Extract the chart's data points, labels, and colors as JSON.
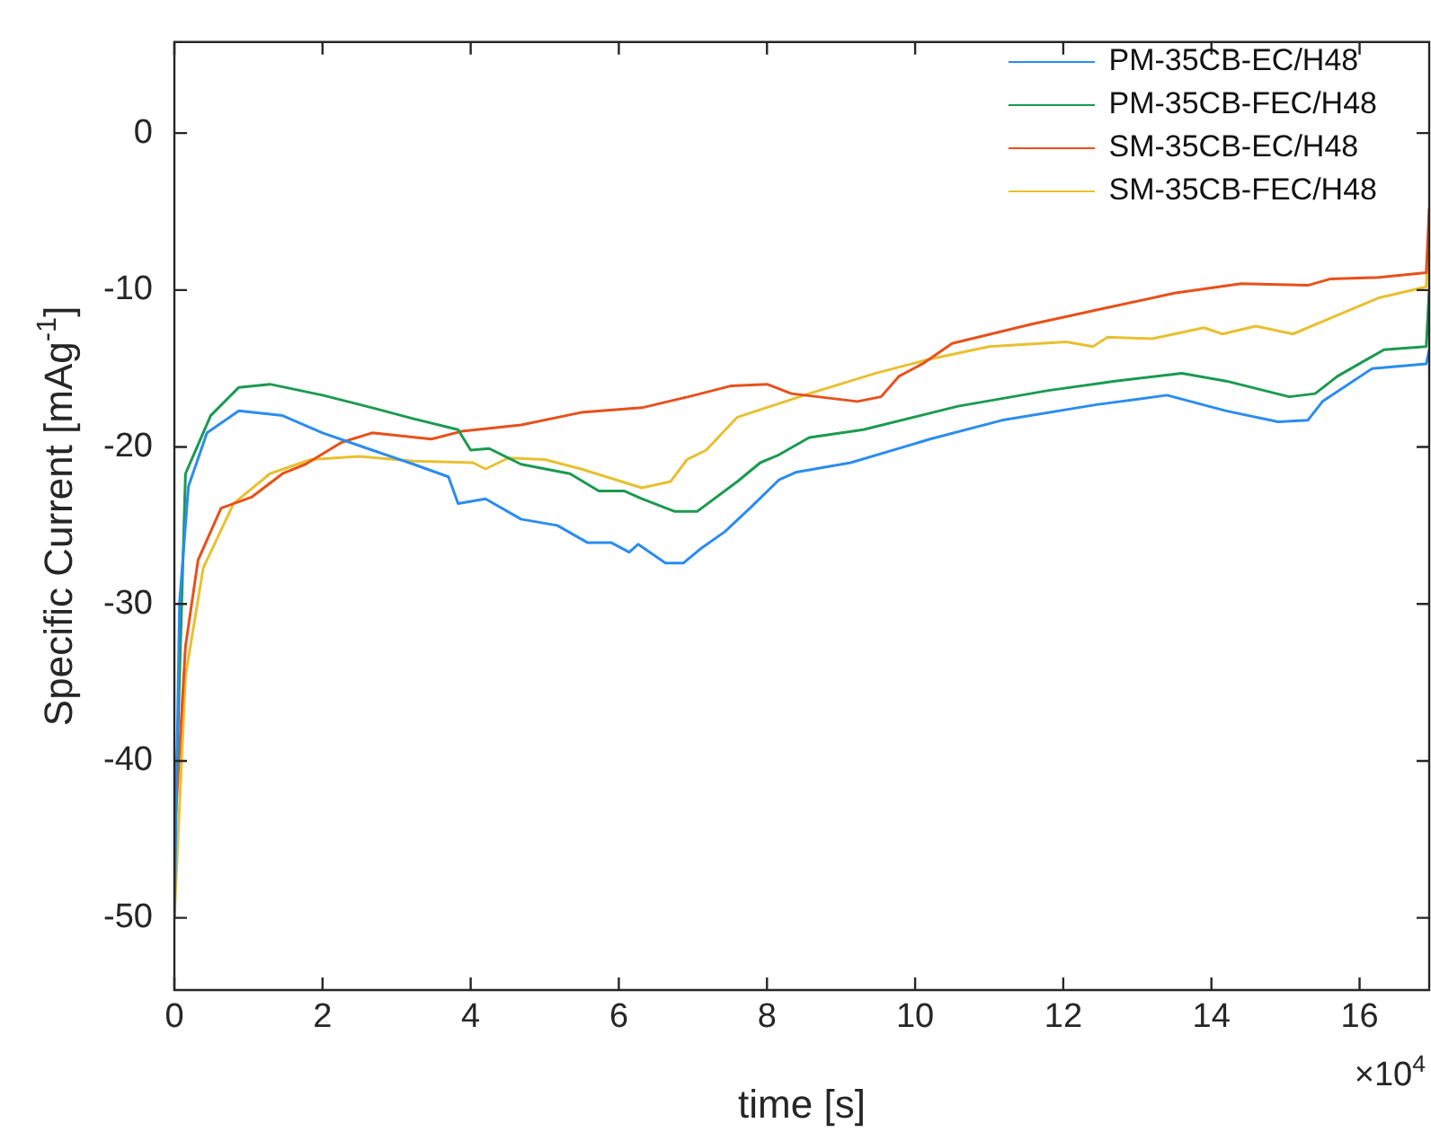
{
  "chart_data": {
    "type": "line",
    "xlabel": "time [s]",
    "ylabel": "Specific Current [mAg$^{-1}$]",
    "annotations": [
      "×10$^{4}$"
    ],
    "xlim": [
      0,
      16.94
    ],
    "xticks": [
      0,
      2,
      4,
      6,
      8,
      10,
      12,
      14,
      16
    ],
    "ylim": [
      -54.6,
      5.8
    ],
    "yticks": [
      -50,
      -40,
      -30,
      -20,
      -10,
      0
    ],
    "grid": false,
    "legend": "top right",
    "marker": "none",
    "line_style": "solid",
    "series": [
      {
        "name": "PM-35CB-EC/H48",
        "color": "#2a8cf0",
        "x": [
          0,
          0.07,
          0.19,
          0.44,
          0.87,
          1.46,
          2.0,
          2.67,
          3.23,
          3.7,
          3.83,
          4.2,
          4.68,
          5.17,
          5.58,
          5.9,
          6.14,
          6.26,
          6.63,
          6.87,
          7.1,
          7.43,
          7.77,
          8.16,
          8.4,
          9.13,
          10.2,
          11.17,
          12.45,
          13.4,
          14.2,
          14.9,
          15.3,
          15.5,
          16.17,
          16.9,
          16.94
        ],
        "values": [
          -50,
          -29.9,
          -22.5,
          -19.1,
          -17.7,
          -18.0,
          -19.1,
          -20.2,
          -21.1,
          -21.9,
          -23.6,
          -23.3,
          -24.6,
          -25.0,
          -26.1,
          -26.1,
          -26.7,
          -26.2,
          -27.4,
          -27.4,
          -26.5,
          -25.4,
          -23.9,
          -22.1,
          -21.6,
          -21.0,
          -19.5,
          -18.3,
          -17.3,
          -16.7,
          -17.7,
          -18.4,
          -18.3,
          -17.1,
          -15.0,
          -14.7,
          -13.8
        ]
      },
      {
        "name": "PM-35CB-FEC/H48",
        "color": "#1a9a50",
        "x": [
          0.02,
          0.15,
          0.49,
          0.87,
          1.29,
          2.0,
          2.67,
          3.23,
          3.83,
          4.0,
          4.25,
          4.68,
          5.34,
          5.73,
          6.07,
          6.31,
          6.75,
          7.06,
          7.6,
          7.91,
          8.16,
          8.57,
          9.3,
          10.58,
          11.8,
          12.7,
          13.6,
          14.2,
          15.05,
          15.4,
          15.7,
          16.33,
          16.9,
          16.94
        ],
        "values": [
          -42.7,
          -21.7,
          -18.0,
          -16.2,
          -16.0,
          -16.7,
          -17.5,
          -18.2,
          -18.9,
          -20.2,
          -20.1,
          -21.1,
          -21.7,
          -22.8,
          -22.8,
          -23.3,
          -24.1,
          -24.1,
          -22.2,
          -21.0,
          -20.5,
          -19.4,
          -18.9,
          -17.4,
          -16.4,
          -15.8,
          -15.3,
          -15.8,
          -16.8,
          -16.6,
          -15.5,
          -13.8,
          -13.6,
          -10.0
        ]
      },
      {
        "name": "SM-35CB-EC/H48",
        "color": "#e8501a",
        "x": [
          0,
          0.15,
          0.32,
          0.63,
          1.04,
          1.46,
          1.77,
          2.26,
          2.67,
          3.47,
          3.88,
          4.68,
          5.49,
          6.31,
          6.94,
          7.52,
          8.0,
          8.33,
          9.22,
          9.54,
          9.78,
          10.1,
          10.5,
          11.55,
          12.52,
          13.5,
          14.4,
          15.3,
          15.6,
          16.26,
          16.9,
          16.94
        ],
        "values": [
          -45,
          -32.7,
          -27.2,
          -23.9,
          -23.2,
          -21.7,
          -21.1,
          -19.7,
          -19.1,
          -19.5,
          -19.0,
          -18.6,
          -17.8,
          -17.5,
          -16.8,
          -16.1,
          -16.0,
          -16.6,
          -17.1,
          -16.8,
          -15.5,
          -14.7,
          -13.4,
          -12.2,
          -11.2,
          -10.2,
          -9.6,
          -9.7,
          -9.3,
          -9.2,
          -8.9,
          -4.8
        ]
      },
      {
        "name": "SM-35CB-FEC/H48",
        "color": "#e8c030",
        "x": [
          0,
          0.15,
          0.39,
          0.8,
          1.29,
          1.84,
          2.5,
          3.23,
          4.03,
          4.2,
          4.51,
          5.0,
          5.49,
          6.31,
          6.7,
          6.92,
          7.18,
          7.6,
          8.57,
          9.47,
          10.2,
          11.0,
          12.04,
          12.4,
          12.6,
          13.2,
          13.9,
          14.15,
          14.6,
          15.1,
          15.7,
          16.26,
          16.9,
          16.94
        ],
        "values": [
          -50,
          -34.6,
          -27.7,
          -23.6,
          -21.7,
          -20.8,
          -20.6,
          -20.9,
          -21.0,
          -21.4,
          -20.7,
          -20.8,
          -21.4,
          -22.6,
          -22.2,
          -20.8,
          -20.2,
          -18.1,
          -16.6,
          -15.3,
          -14.4,
          -13.6,
          -13.3,
          -13.6,
          -13.0,
          -13.1,
          -12.4,
          -12.8,
          -12.3,
          -12.8,
          -11.6,
          -10.5,
          -9.8,
          -5.5
        ]
      }
    ]
  }
}
